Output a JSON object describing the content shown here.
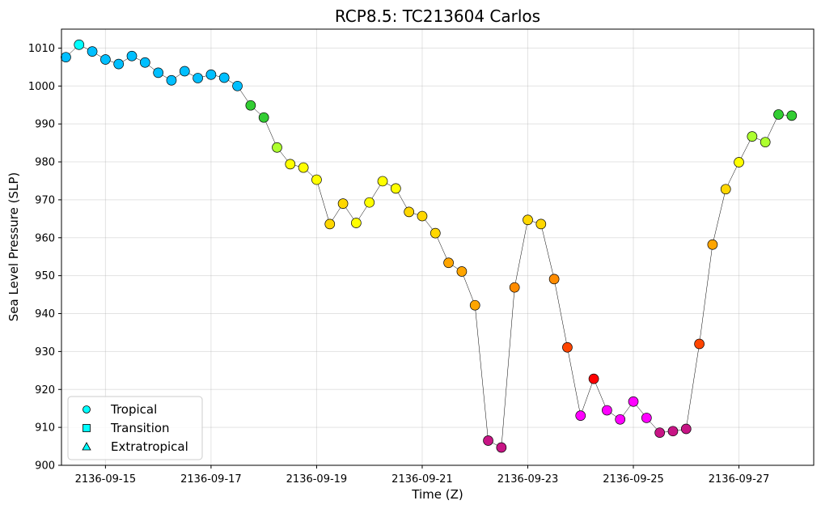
{
  "chart_data": {
    "type": "scatter",
    "title": "RCP8.5: TC213604 Carlos",
    "xlabel": "Time (Z)",
    "ylabel": "Sea Level Pressure (SLP)",
    "ylim": [
      900,
      1015
    ],
    "xlim": [
      "2136-09-14T04:00",
      "2136-09-28T10:00"
    ],
    "yticks": [
      900,
      910,
      920,
      930,
      940,
      950,
      960,
      970,
      980,
      990,
      1000,
      1010
    ],
    "xticks": [
      "2136-09-15",
      "2136-09-17",
      "2136-09-19",
      "2136-09-21",
      "2136-09-23",
      "2136-09-25",
      "2136-09-27"
    ],
    "grid": true,
    "legend_position": "lower-left",
    "legend": [
      {
        "label": "Tropical",
        "marker": "circle"
      },
      {
        "label": "Transition",
        "marker": "square"
      },
      {
        "label": "Extratropical",
        "marker": "triangle"
      }
    ],
    "legend_color": "#00ffff",
    "line_color": "#000000",
    "points": [
      {
        "t": "2136-09-14T06:00",
        "slp": 1007.6,
        "color": "#00bfff"
      },
      {
        "t": "2136-09-14T12:00",
        "slp": 1010.9,
        "color": "#00ffff"
      },
      {
        "t": "2136-09-14T18:00",
        "slp": 1009.1,
        "color": "#00bfff"
      },
      {
        "t": "2136-09-15T00:00",
        "slp": 1007.0,
        "color": "#00bfff"
      },
      {
        "t": "2136-09-15T06:00",
        "slp": 1005.8,
        "color": "#00bfff"
      },
      {
        "t": "2136-09-15T12:00",
        "slp": 1007.9,
        "color": "#00bfff"
      },
      {
        "t": "2136-09-15T18:00",
        "slp": 1006.2,
        "color": "#00bfff"
      },
      {
        "t": "2136-09-16T00:00",
        "slp": 1003.5,
        "color": "#00bfff"
      },
      {
        "t": "2136-09-16T06:00",
        "slp": 1001.5,
        "color": "#00bfff"
      },
      {
        "t": "2136-09-16T12:00",
        "slp": 1003.9,
        "color": "#00bfff"
      },
      {
        "t": "2136-09-16T18:00",
        "slp": 1002.1,
        "color": "#00bfff"
      },
      {
        "t": "2136-09-17T00:00",
        "slp": 1003.0,
        "color": "#00bfff"
      },
      {
        "t": "2136-09-17T06:00",
        "slp": 1002.2,
        "color": "#00bfff"
      },
      {
        "t": "2136-09-17T12:00",
        "slp": 1000.0,
        "color": "#00bfff"
      },
      {
        "t": "2136-09-17T18:00",
        "slp": 994.9,
        "color": "#32cd32"
      },
      {
        "t": "2136-09-18T00:00",
        "slp": 991.7,
        "color": "#32cd32"
      },
      {
        "t": "2136-09-18T06:00",
        "slp": 983.8,
        "color": "#adff2f"
      },
      {
        "t": "2136-09-18T12:00",
        "slp": 979.4,
        "color": "#ffff00"
      },
      {
        "t": "2136-09-18T18:00",
        "slp": 978.5,
        "color": "#ffff00"
      },
      {
        "t": "2136-09-19T00:00",
        "slp": 975.3,
        "color": "#ffff00"
      },
      {
        "t": "2136-09-19T06:00",
        "slp": 963.6,
        "color": "#ffd700"
      },
      {
        "t": "2136-09-19T12:00",
        "slp": 969.0,
        "color": "#ffd700"
      },
      {
        "t": "2136-09-19T18:00",
        "slp": 963.9,
        "color": "#ffff00"
      },
      {
        "t": "2136-09-20T00:00",
        "slp": 969.3,
        "color": "#ffff00"
      },
      {
        "t": "2136-09-20T06:00",
        "slp": 974.9,
        "color": "#ffff00"
      },
      {
        "t": "2136-09-20T12:00",
        "slp": 973.0,
        "color": "#ffff00"
      },
      {
        "t": "2136-09-20T18:00",
        "slp": 966.8,
        "color": "#ffd700"
      },
      {
        "t": "2136-09-21T00:00",
        "slp": 965.7,
        "color": "#ffd700"
      },
      {
        "t": "2136-09-21T06:00",
        "slp": 961.2,
        "color": "#ffd700"
      },
      {
        "t": "2136-09-21T12:00",
        "slp": 953.4,
        "color": "#ffa500"
      },
      {
        "t": "2136-09-21T18:00",
        "slp": 951.1,
        "color": "#ffa500"
      },
      {
        "t": "2136-09-22T00:00",
        "slp": 942.2,
        "color": "#ffa500"
      },
      {
        "t": "2136-09-22T06:00",
        "slp": 906.5,
        "color": "#c71585"
      },
      {
        "t": "2136-09-22T12:00",
        "slp": 904.7,
        "color": "#c71585"
      },
      {
        "t": "2136-09-22T18:00",
        "slp": 946.9,
        "color": "#ff8c00"
      },
      {
        "t": "2136-09-23T00:00",
        "slp": 964.7,
        "color": "#ffd700"
      },
      {
        "t": "2136-09-23T06:00",
        "slp": 963.6,
        "color": "#ffd700"
      },
      {
        "t": "2136-09-23T12:00",
        "slp": 949.1,
        "color": "#ff8c00"
      },
      {
        "t": "2136-09-23T18:00",
        "slp": 931.1,
        "color": "#ff4500"
      },
      {
        "t": "2136-09-24T00:00",
        "slp": 913.1,
        "color": "#ff00ff"
      },
      {
        "t": "2136-09-24T06:00",
        "slp": 922.8,
        "color": "#ff0000"
      },
      {
        "t": "2136-09-24T12:00",
        "slp": 914.5,
        "color": "#ff00ff"
      },
      {
        "t": "2136-09-24T18:00",
        "slp": 912.1,
        "color": "#ff00ff"
      },
      {
        "t": "2136-09-25T00:00",
        "slp": 916.8,
        "color": "#ff00ff"
      },
      {
        "t": "2136-09-25T06:00",
        "slp": 912.5,
        "color": "#ff00ff"
      },
      {
        "t": "2136-09-25T12:00",
        "slp": 908.6,
        "color": "#c71585"
      },
      {
        "t": "2136-09-25T18:00",
        "slp": 909.0,
        "color": "#c71585"
      },
      {
        "t": "2136-09-26T00:00",
        "slp": 909.6,
        "color": "#c71585"
      },
      {
        "t": "2136-09-26T06:00",
        "slp": 932.0,
        "color": "#ff4500"
      },
      {
        "t": "2136-09-26T12:00",
        "slp": 958.2,
        "color": "#ffa500"
      },
      {
        "t": "2136-09-26T18:00",
        "slp": 972.8,
        "color": "#ffd700"
      },
      {
        "t": "2136-09-27T00:00",
        "slp": 979.9,
        "color": "#ffff00"
      },
      {
        "t": "2136-09-27T06:00",
        "slp": 986.7,
        "color": "#adff2f"
      },
      {
        "t": "2136-09-27T12:00",
        "slp": 985.2,
        "color": "#adff2f"
      },
      {
        "t": "2136-09-27T18:00",
        "slp": 992.5,
        "color": "#32cd32"
      },
      {
        "t": "2136-09-28T00:00",
        "slp": 992.2,
        "color": "#32cd32"
      }
    ]
  }
}
